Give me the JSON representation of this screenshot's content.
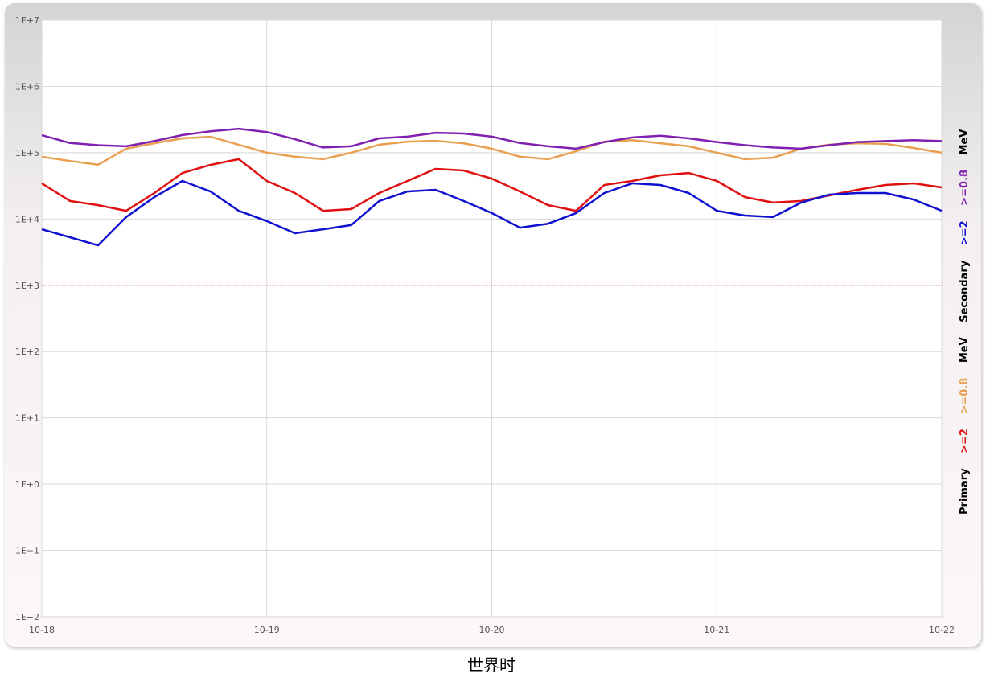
{
  "chart_data": {
    "type": "line",
    "x_label": "世界时",
    "log_y": true,
    "grid": true,
    "ylim": [
      0.01,
      10000000
    ],
    "yticks": [
      {
        "value": 0.01,
        "label": "1E−2"
      },
      {
        "value": 0.1,
        "label": "1E−1"
      },
      {
        "value": 1,
        "label": "1E+0"
      },
      {
        "value": 10,
        "label": "1E+1"
      },
      {
        "value": 100,
        "label": "1E+2"
      },
      {
        "value": 1000,
        "label": "1E+3"
      },
      {
        "value": 10000,
        "label": "1E+4"
      },
      {
        "value": 100000,
        "label": "1E+5"
      },
      {
        "value": 1000000,
        "label": "1E+6"
      },
      {
        "value": 10000000,
        "label": "1E+7"
      }
    ],
    "xlim": [
      18,
      22
    ],
    "xticks": [
      {
        "value": 18,
        "label": "10-18"
      },
      {
        "value": 19,
        "label": "10-19"
      },
      {
        "value": 20,
        "label": "10-20"
      },
      {
        "value": 21,
        "label": "10-21"
      },
      {
        "value": 22,
        "label": "10-22"
      }
    ],
    "threshold": {
      "value": 1000,
      "color": "#e03030"
    },
    "legend_position": "right",
    "legend_groups": [
      {
        "label": "Primary",
        "unit": "MeV"
      },
      {
        "label": "Secondary",
        "unit": "MeV"
      }
    ],
    "x": [
      18,
      18.125,
      18.25,
      18.375,
      18.5,
      18.625,
      18.75,
      18.875,
      19,
      19.125,
      19.25,
      19.375,
      19.5,
      19.625,
      19.75,
      19.875,
      20,
      20.125,
      20.25,
      20.375,
      20.5,
      20.625,
      20.75,
      20.875,
      21,
      21.125,
      21.25,
      21.375,
      21.5,
      21.625,
      21.75,
      21.875,
      22
    ],
    "series": [
      {
        "name": ">=2",
        "group": 0,
        "color": "#e01010",
        "values": [
          34500,
          18700,
          16200,
          13300,
          24700,
          49500,
          65600,
          80000,
          37500,
          24700,
          13300,
          14100,
          24700,
          37500,
          57000,
          54000,
          40700,
          26000,
          16200,
          13300,
          32600,
          37500,
          45600,
          49500,
          37500,
          21400,
          17700,
          18700,
          22700,
          27600,
          32600,
          34500,
          30000
        ]
      },
      {
        "name": ">=0.8",
        "group": 0,
        "color": "#e8a050",
        "values": [
          87000,
          75000,
          66000,
          115000,
          139000,
          165000,
          174000,
          132000,
          100000,
          87000,
          80000,
          100000,
          132000,
          147000,
          151000,
          139000,
          115000,
          87000,
          80000,
          105000,
          147000,
          155000,
          139000,
          125000,
          100000,
          80000,
          84000,
          115000,
          132000,
          139000,
          136000,
          118000,
          100000
        ]
      },
      {
        "name": ">=2",
        "group": 1,
        "color": "#1010d0",
        "values": [
          7000,
          5300,
          4000,
          10700,
          21400,
          37500,
          26000,
          13300,
          9300,
          6100,
          7000,
          8100,
          18700,
          26000,
          27600,
          18700,
          12300,
          7400,
          8500,
          12300,
          24700,
          34500,
          32600,
          24700,
          13300,
          11300,
          10700,
          17700,
          23300,
          24700,
          24700,
          19700,
          13300
        ]
      },
      {
        "name": ">=0.8",
        "group": 1,
        "color": "#8020b0",
        "values": [
          184000,
          140000,
          130000,
          125000,
          150000,
          185000,
          210000,
          230000,
          205000,
          160000,
          120000,
          125000,
          165000,
          175000,
          200000,
          195000,
          175000,
          140000,
          125000,
          115000,
          145000,
          170000,
          180000,
          165000,
          145000,
          130000,
          120000,
          115000,
          130000,
          145000,
          150000,
          155000,
          150000
        ]
      }
    ]
  }
}
